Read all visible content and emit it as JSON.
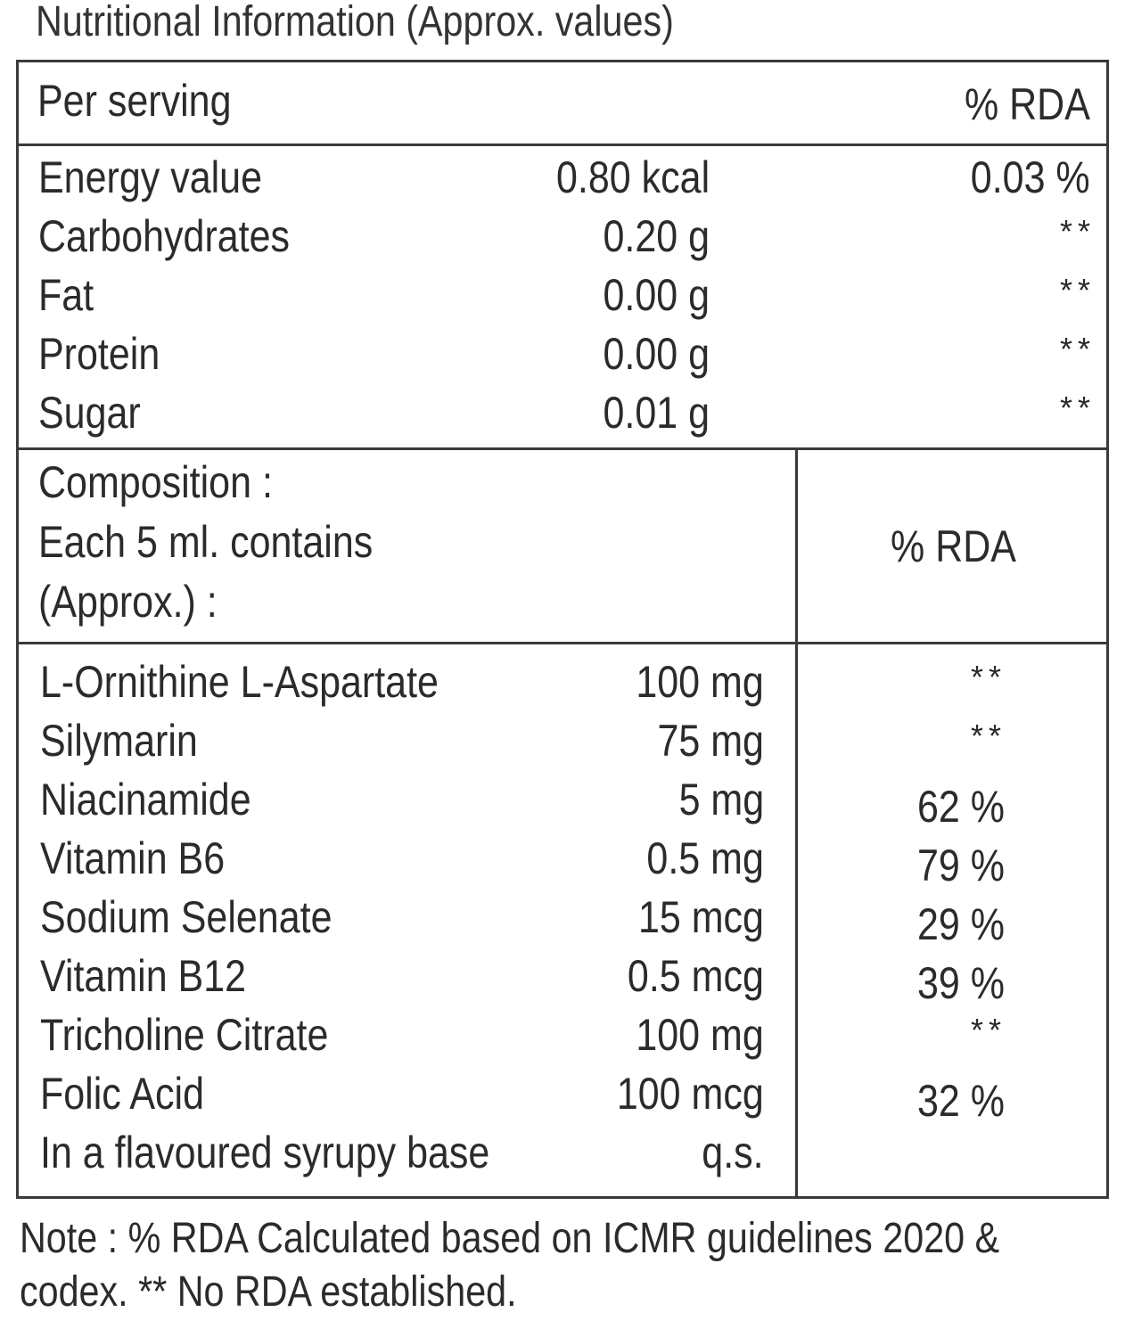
{
  "title": "Nutritional Information (Approx. values)",
  "nutrition": {
    "header_label": "Per serving",
    "header_rda": "% RDA",
    "rows": [
      {
        "name": "Energy value",
        "amount": "0.80 kcal",
        "rda": "0.03 %"
      },
      {
        "name": "Carbohydrates",
        "amount": "0.20 g",
        "rda": "**"
      },
      {
        "name": "Fat",
        "amount": "0.00 g",
        "rda": "**"
      },
      {
        "name": "Protein",
        "amount": "0.00 g",
        "rda": "**"
      },
      {
        "name": "Sugar",
        "amount": "0.01 g",
        "rda": "**"
      }
    ]
  },
  "composition": {
    "header_lines": [
      "Composition :",
      "Each 5 ml. contains",
      "(Approx.) :"
    ],
    "header_rda": "% RDA",
    "rows": [
      {
        "name": "L-Ornithine L-Aspartate",
        "amount": "100 mg",
        "rda": "**"
      },
      {
        "name": "Silymarin",
        "amount": "75 mg",
        "rda": "**"
      },
      {
        "name": "Niacinamide",
        "amount": "5 mg",
        "rda": "62 %"
      },
      {
        "name": "Vitamin B6",
        "amount": "0.5 mg",
        "rda": "79 %"
      },
      {
        "name": "Sodium Selenate",
        "amount": "15 mcg",
        "rda": "29 %"
      },
      {
        "name": "Vitamin B12",
        "amount": "0.5 mcg",
        "rda": "39 %"
      },
      {
        "name": "Tricholine Citrate",
        "amount": "100 mg",
        "rda": "**"
      },
      {
        "name": "Folic Acid",
        "amount": "100 mcg",
        "rda": "32 %"
      },
      {
        "name": "In a flavoured syrupy base",
        "amount": "q.s.",
        "rda": ""
      }
    ]
  },
  "note_lines": [
    "Note : % RDA Calculated based on ICMR guidelines 2020 &",
    "codex. ** No RDA established."
  ]
}
